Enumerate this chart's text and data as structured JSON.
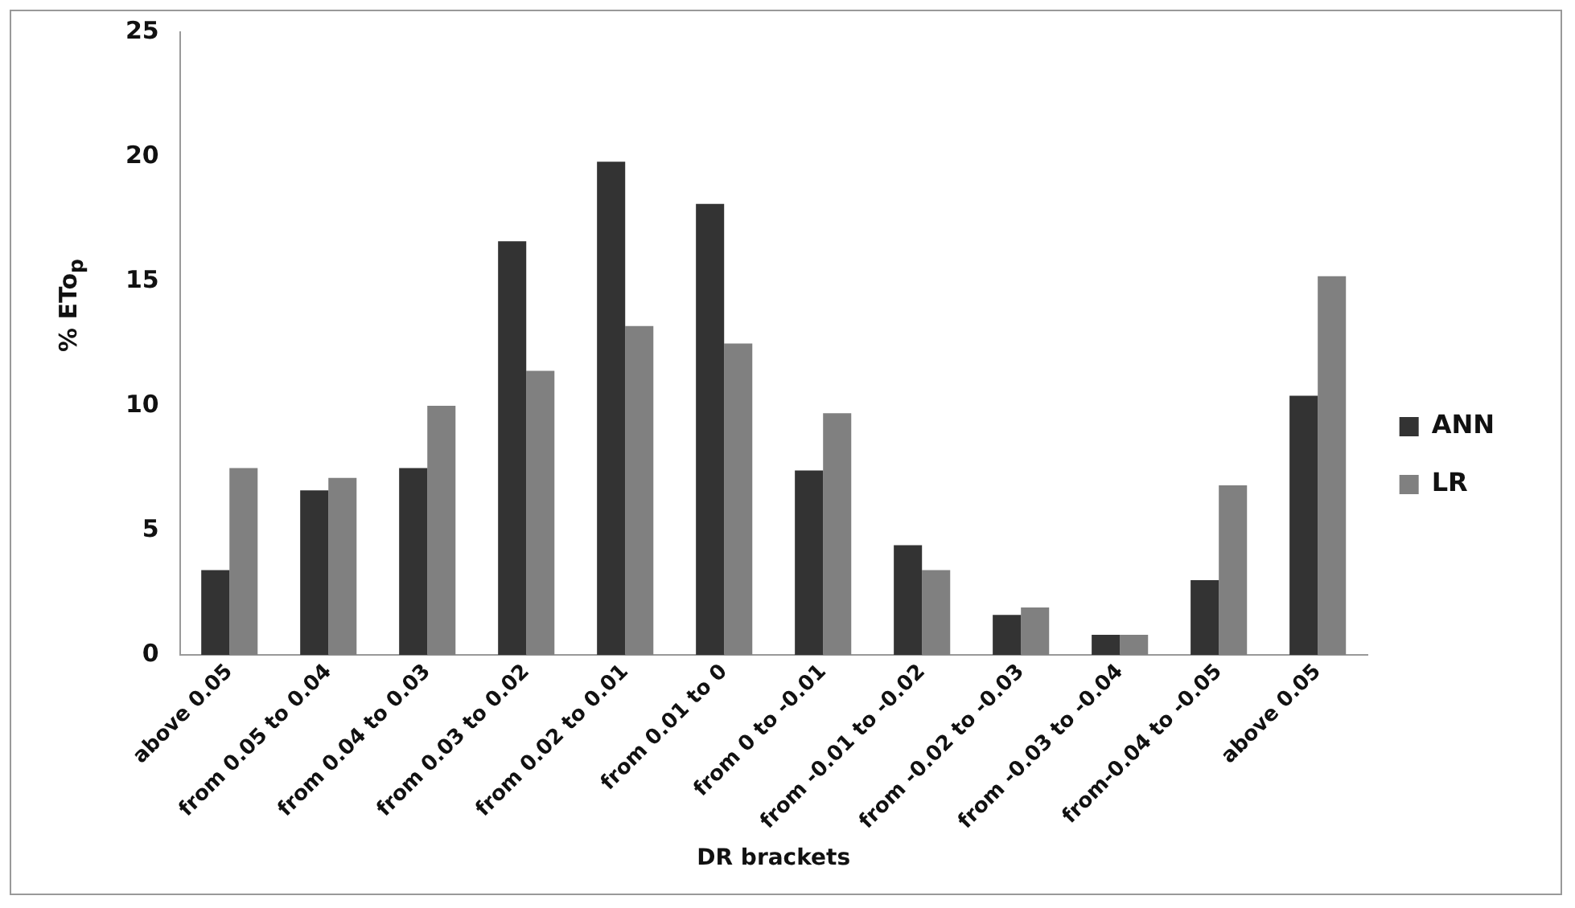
{
  "chart_data": {
    "type": "bar",
    "xlabel": "DR brackets",
    "ylabel": "% ETo$_{p}$",
    "categories": [
      "above 0.05",
      "from 0.05 to 0.04",
      "from 0.04 to 0.03",
      "from 0.03 to 0.02",
      "from 0.02 to 0.01",
      "from 0.01 to 0",
      "from 0 to -0.01",
      "from -0.01 to -0.02",
      "from -0.02 to -0.03",
      "from -0.03 to -0.04",
      "from-0.04 to -0.05",
      "above 0.05"
    ],
    "series": [
      {
        "name": "ANN",
        "color": "#333333",
        "values": [
          3.4,
          6.6,
          7.5,
          16.6,
          19.8,
          18.1,
          7.4,
          4.4,
          1.6,
          0.8,
          3.0,
          10.4
        ]
      },
      {
        "name": "LR",
        "color": "#808080",
        "values": [
          7.5,
          7.1,
          10.0,
          11.4,
          13.2,
          12.5,
          9.7,
          3.4,
          1.9,
          0.8,
          6.8,
          15.2
        ]
      }
    ],
    "ylim": [
      0,
      25
    ],
    "yticks": [
      0,
      5,
      10,
      15,
      20,
      25
    ],
    "grid": false,
    "legend": "right"
  }
}
